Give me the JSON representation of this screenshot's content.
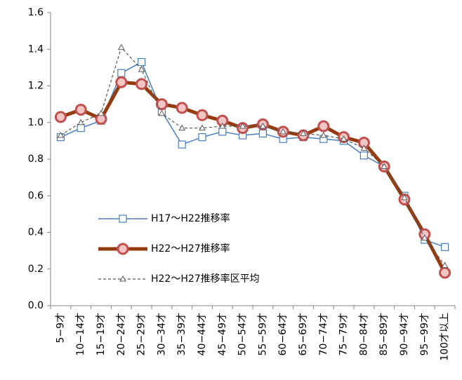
{
  "chart_data": {
    "type": "line",
    "categories": [
      "5−9才",
      "10−14才",
      "15−19才",
      "20−24才",
      "25−29才",
      "30−34才",
      "35−39才",
      "40−44才",
      "45−49才",
      "50−54才",
      "55−59才",
      "60−64才",
      "65−69才",
      "70−74才",
      "75−79才",
      "80−84才",
      "85−89才",
      "90−94才",
      "95−99才",
      "100才以上"
    ],
    "series": [
      {
        "name": "H17〜H22推移率",
        "color": "#4a7ebb",
        "marker": "square",
        "marker_fill": "#ffffff",
        "width": 1.5,
        "dash": false,
        "values": [
          0.92,
          0.97,
          1.01,
          1.27,
          1.33,
          1.06,
          0.88,
          0.92,
          0.95,
          0.93,
          0.94,
          0.91,
          0.92,
          0.91,
          0.9,
          0.82,
          0.76,
          0.6,
          0.36,
          0.32
        ]
      },
      {
        "name": "H22〜H27推移率",
        "color": "#953b12",
        "marker": "circle",
        "marker_fill": "#f2c4c4",
        "marker_stroke": "#c0504d",
        "width": 5,
        "dash": false,
        "values": [
          1.03,
          1.07,
          1.02,
          1.22,
          1.21,
          1.1,
          1.08,
          1.04,
          1.01,
          0.97,
          0.99,
          0.95,
          0.93,
          0.98,
          0.92,
          0.89,
          0.76,
          0.58,
          0.39,
          0.18
        ]
      },
      {
        "name": "H22〜H27推移率区平均",
        "color": "#595959",
        "marker": "triangle",
        "marker_fill": "#ffffff",
        "width": 1.2,
        "dash": true,
        "values": [
          0.93,
          1.0,
          1.05,
          1.41,
          1.29,
          1.05,
          0.97,
          0.97,
          0.98,
          0.98,
          0.98,
          0.95,
          0.94,
          0.93,
          0.91,
          0.86,
          0.76,
          0.59,
          0.37,
          0.22
        ]
      }
    ],
    "ylim": [
      0,
      1.6
    ],
    "yticks": [
      {
        "value": 0,
        "label": "0.0"
      },
      0.2,
      0.4,
      0.6,
      0.8,
      {
        "value": 1,
        "label": "1.0"
      },
      1.2,
      1.4,
      1.6
    ],
    "grid": false,
    "legend": "lower-left"
  }
}
